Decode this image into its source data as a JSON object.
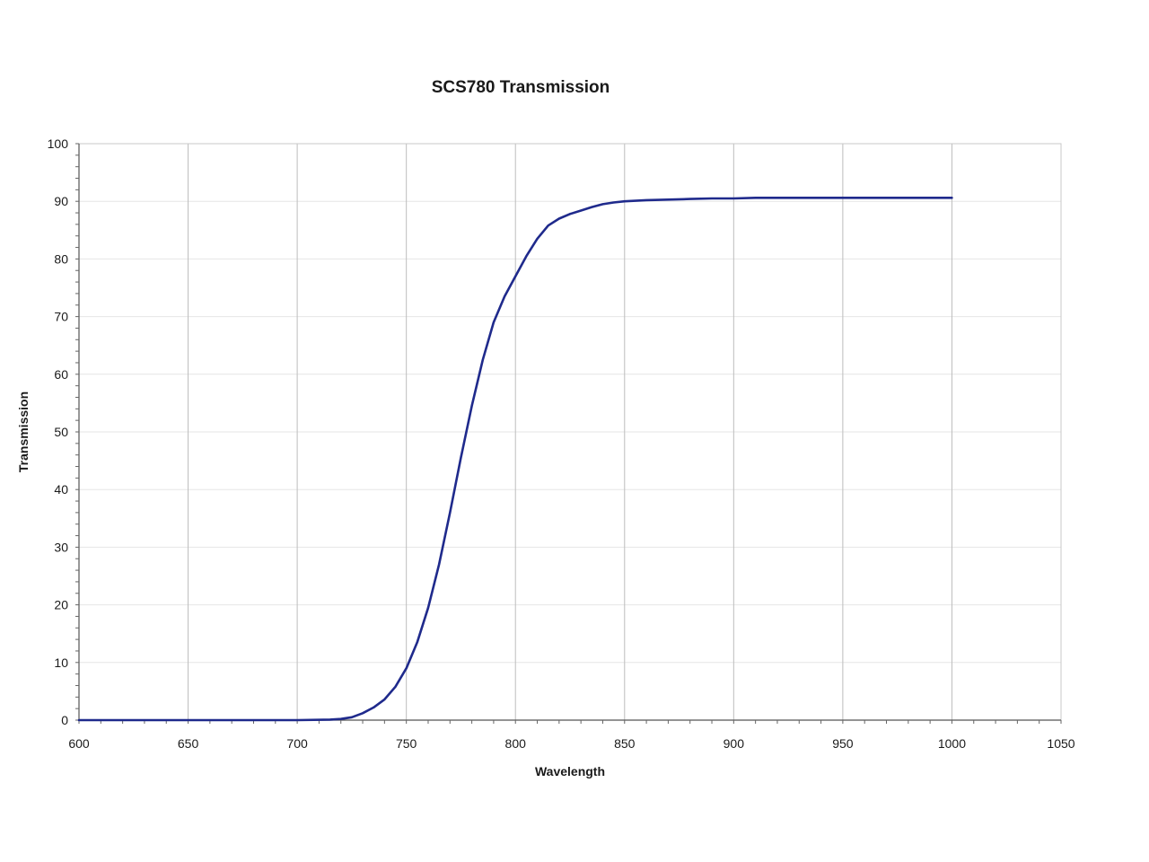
{
  "chart_data": {
    "type": "line",
    "title": "SCS780 Transmission",
    "xlabel": "Wavelength",
    "ylabel": "Transmission",
    "xlim": [
      600,
      1050
    ],
    "ylim": [
      0,
      100
    ],
    "x_ticks": [
      600,
      650,
      700,
      750,
      800,
      850,
      900,
      950,
      1000,
      1050
    ],
    "y_ticks": [
      0,
      10,
      20,
      30,
      40,
      50,
      60,
      70,
      80,
      90,
      100
    ],
    "grid": {
      "vertical": true,
      "horizontal": true
    },
    "legend": "none",
    "series": [
      {
        "color": "#1f2a8c",
        "x": [
          600,
          650,
          700,
          715,
          720,
          725,
          730,
          735,
          740,
          745,
          750,
          755,
          760,
          765,
          770,
          775,
          780,
          785,
          790,
          795,
          800,
          805,
          810,
          815,
          820,
          825,
          830,
          835,
          840,
          845,
          850,
          860,
          870,
          880,
          890,
          900,
          910,
          925,
          950,
          975,
          1000
        ],
        "y": [
          0,
          0,
          0,
          0.1,
          0.2,
          0.5,
          1.2,
          2.2,
          3.6,
          5.8,
          9.0,
          13.5,
          19.5,
          27.0,
          36.0,
          45.5,
          54.5,
          62.5,
          69.0,
          73.5,
          77.0,
          80.5,
          83.5,
          85.8,
          87.0,
          87.8,
          88.4,
          89.0,
          89.5,
          89.8,
          90.0,
          90.2,
          90.3,
          90.4,
          90.5,
          90.5,
          90.6,
          90.6,
          90.6,
          90.6,
          90.6
        ]
      }
    ]
  }
}
